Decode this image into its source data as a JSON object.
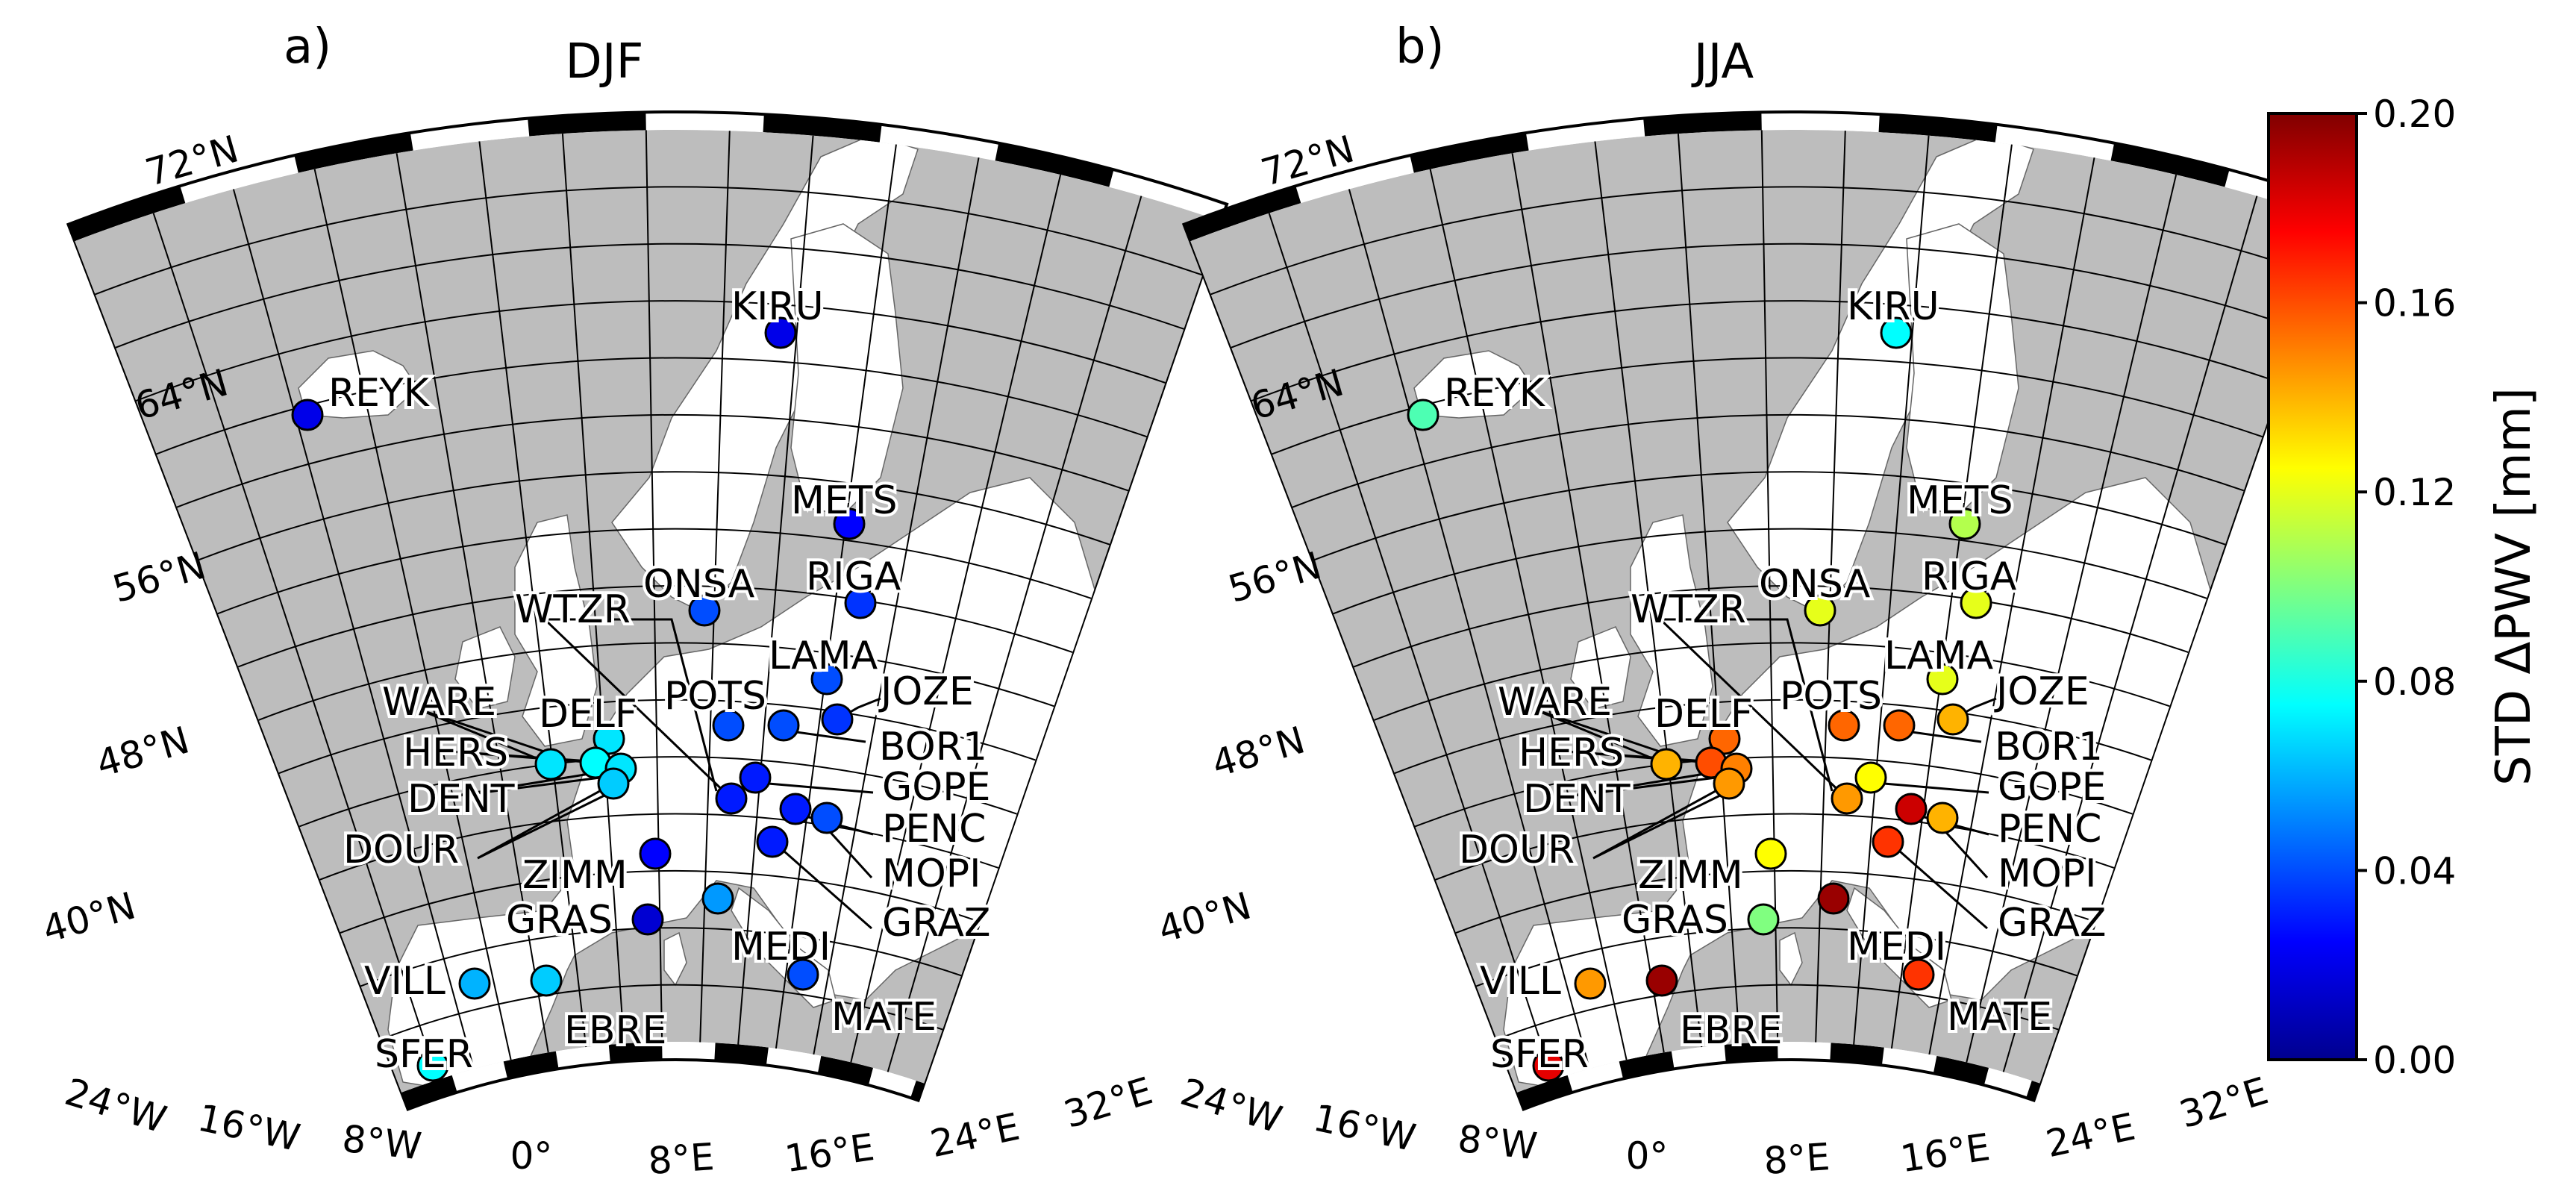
{
  "panels": [
    {
      "letter": "a)",
      "season": "DJF",
      "stations": [
        {
          "name": "KIRU",
          "std": 0.02
        },
        {
          "name": "REYK",
          "std": 0.02
        },
        {
          "name": "METS",
          "std": 0.025
        },
        {
          "name": "RIGA",
          "std": 0.035
        },
        {
          "name": "ONSA",
          "std": 0.04
        },
        {
          "name": "LAMA",
          "std": 0.04
        },
        {
          "name": "JOZE",
          "std": 0.035
        },
        {
          "name": "BOR1",
          "std": 0.04
        },
        {
          "name": "POTS",
          "std": 0.04
        },
        {
          "name": "WTZR",
          "std": 0.03
        },
        {
          "name": "GOPE",
          "std": 0.03
        },
        {
          "name": "PENC",
          "std": 0.03
        },
        {
          "name": "MOPI",
          "std": 0.04
        },
        {
          "name": "GRAZ",
          "std": 0.03
        },
        {
          "name": "WARE",
          "std": 0.07
        },
        {
          "name": "DELF",
          "std": 0.07
        },
        {
          "name": "HERS",
          "std": 0.075
        },
        {
          "name": "DENT",
          "std": 0.07
        },
        {
          "name": "DOUR",
          "std": 0.065
        },
        {
          "name": "ZIMM",
          "std": 0.025
        },
        {
          "name": "GRAS",
          "std": 0.015
        },
        {
          "name": "MEDI",
          "std": 0.055
        },
        {
          "name": "MATE",
          "std": 0.04
        },
        {
          "name": "VILL",
          "std": 0.06
        },
        {
          "name": "EBRE",
          "std": 0.065
        },
        {
          "name": "SFER",
          "std": 0.075
        }
      ]
    },
    {
      "letter": "b)",
      "season": "JJA",
      "stations": [
        {
          "name": "KIRU",
          "std": 0.075
        },
        {
          "name": "REYK",
          "std": 0.09
        },
        {
          "name": "METS",
          "std": 0.11
        },
        {
          "name": "RIGA",
          "std": 0.12
        },
        {
          "name": "ONSA",
          "std": 0.12
        },
        {
          "name": "LAMA",
          "std": 0.12
        },
        {
          "name": "JOZE",
          "std": 0.14
        },
        {
          "name": "BOR1",
          "std": 0.155
        },
        {
          "name": "POTS",
          "std": 0.155
        },
        {
          "name": "WTZR",
          "std": 0.145
        },
        {
          "name": "GOPE",
          "std": 0.125
        },
        {
          "name": "PENC",
          "std": 0.185
        },
        {
          "name": "MOPI",
          "std": 0.14
        },
        {
          "name": "GRAZ",
          "std": 0.165
        },
        {
          "name": "WARE",
          "std": 0.14
        },
        {
          "name": "DELF",
          "std": 0.155
        },
        {
          "name": "HERS",
          "std": 0.16
        },
        {
          "name": "DENT",
          "std": 0.15
        },
        {
          "name": "DOUR",
          "std": 0.145
        },
        {
          "name": "ZIMM",
          "std": 0.125
        },
        {
          "name": "GRAS",
          "std": 0.1
        },
        {
          "name": "MEDI",
          "std": 0.195
        },
        {
          "name": "MATE",
          "std": 0.165
        },
        {
          "name": "VILL",
          "std": 0.145
        },
        {
          "name": "EBRE",
          "std": 0.195
        },
        {
          "name": "SFER",
          "std": 0.18
        }
      ]
    }
  ],
  "lat_labels": [
    "72°N",
    "64°N",
    "56°N",
    "48°N",
    "40°N"
  ],
  "lon_labels": [
    "24°W",
    "16°W",
    "8°W",
    "0°",
    "8°E",
    "16°E",
    "24°E",
    "32°E"
  ],
  "colorbar": {
    "label": "STD ΔPWV [mm]",
    "min": 0.0,
    "max": 0.2,
    "ticks": [
      "0.20",
      "0.16",
      "0.12",
      "0.08",
      "0.04",
      "0.00"
    ],
    "colors": [
      "#00008f",
      "#0000ff",
      "#0080ff",
      "#00ffff",
      "#80ff80",
      "#ffff00",
      "#ff8000",
      "#ff0000",
      "#800000"
    ]
  },
  "colors": {
    "map_fill": "#bdbdbd",
    "land": "#ffffff",
    "grid": "#000000"
  }
}
